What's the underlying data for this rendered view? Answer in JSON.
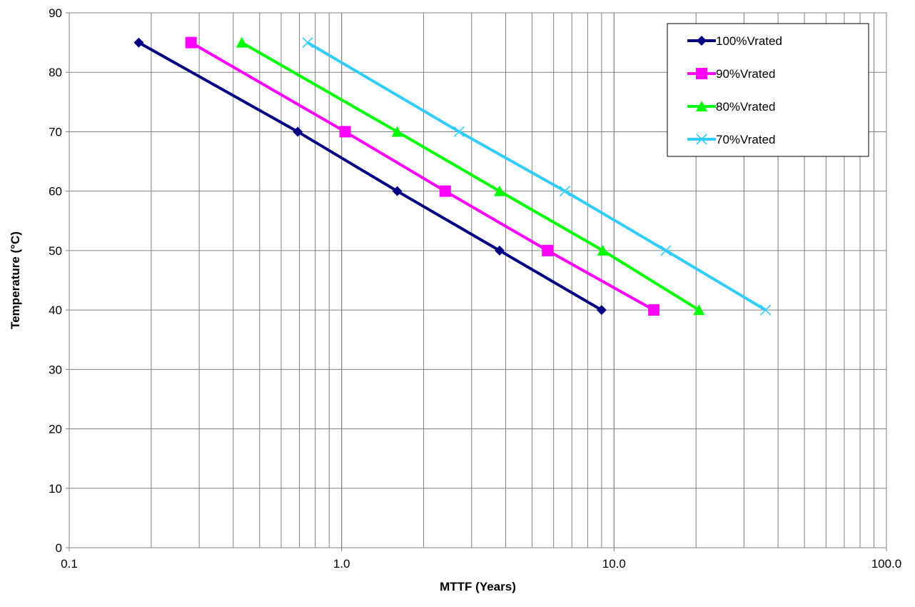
{
  "chart_data": {
    "type": "line",
    "xscale": "log",
    "xlabel": "MTTF (Years)",
    "ylabel": "Temperature (°C)",
    "xlim": [
      0.1,
      100
    ],
    "ylim": [
      0,
      90
    ],
    "x_ticks": [
      "0.1",
      "1.0",
      "10.0",
      "100.0"
    ],
    "y_ticks": [
      "0",
      "10",
      "20",
      "30",
      "40",
      "50",
      "60",
      "70",
      "80",
      "90"
    ],
    "grid": true,
    "legend_position": "top-right",
    "series": [
      {
        "name": "100%Vrated",
        "color": "#000080",
        "marker": "diamond",
        "points": [
          [
            0.18,
            85
          ],
          [
            0.69,
            70
          ],
          [
            1.6,
            60
          ],
          [
            3.8,
            50
          ],
          [
            9.0,
            40
          ]
        ]
      },
      {
        "name": "90%Vrated",
        "color": "#ff00ff",
        "marker": "square",
        "points": [
          [
            0.28,
            85
          ],
          [
            1.03,
            70
          ],
          [
            2.4,
            60
          ],
          [
            5.7,
            50
          ],
          [
            14.0,
            40
          ]
        ]
      },
      {
        "name": "80%Vrated",
        "color": "#00ff00",
        "marker": "triangle",
        "points": [
          [
            0.43,
            85
          ],
          [
            1.6,
            70
          ],
          [
            3.8,
            60
          ],
          [
            9.1,
            50
          ],
          [
            20.5,
            40
          ]
        ]
      },
      {
        "name": "70%Vrated",
        "color": "#33ccff",
        "marker": "x",
        "points": [
          [
            0.75,
            85
          ],
          [
            2.7,
            70
          ],
          [
            6.6,
            60
          ],
          [
            15.5,
            50
          ],
          [
            36.0,
            40
          ]
        ]
      }
    ]
  }
}
